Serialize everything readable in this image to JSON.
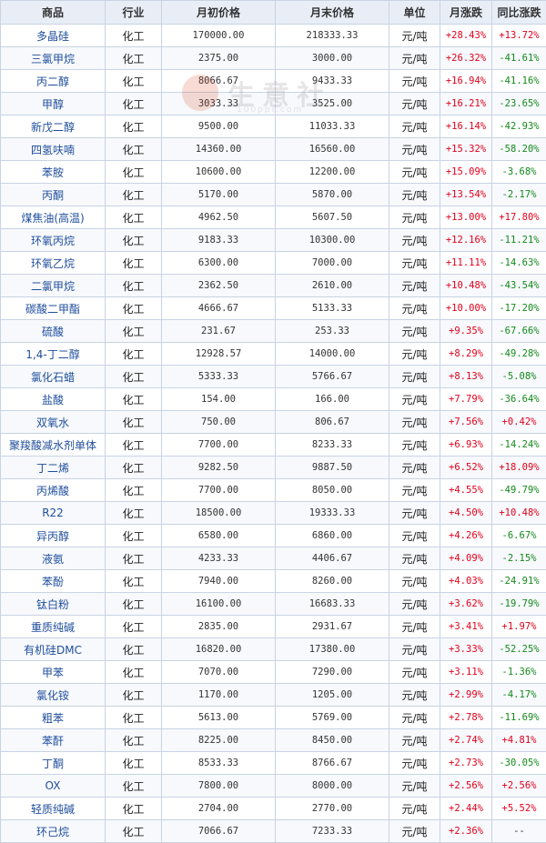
{
  "headers": {
    "product": "商品",
    "industry": "行业",
    "start_price": "月初价格",
    "end_price": "月末价格",
    "unit": "单位",
    "monthly_change": "月涨跌",
    "yoy_change": "同比涨跌"
  },
  "watermark": {
    "text": "生意社",
    "sub": "100ppi.com"
  },
  "colors": {
    "up": "#e0001b",
    "down": "#138a1b",
    "header_bg": "#e9eef6",
    "link": "#1f4e9c"
  },
  "rows": [
    {
      "name": "多晶硅",
      "industry": "化工",
      "start": "170000.00",
      "end": "218333.33",
      "unit": "元/吨",
      "month": "+28.43%",
      "yoy": "+13.72%"
    },
    {
      "name": "三氯甲烷",
      "industry": "化工",
      "start": "2375.00",
      "end": "3000.00",
      "unit": "元/吨",
      "month": "+26.32%",
      "yoy": "-41.61%"
    },
    {
      "name": "丙二醇",
      "industry": "化工",
      "start": "8066.67",
      "end": "9433.33",
      "unit": "元/吨",
      "month": "+16.94%",
      "yoy": "-41.16%"
    },
    {
      "name": "甲醇",
      "industry": "化工",
      "start": "3033.33",
      "end": "3525.00",
      "unit": "元/吨",
      "month": "+16.21%",
      "yoy": "-23.65%"
    },
    {
      "name": "新戊二醇",
      "industry": "化工",
      "start": "9500.00",
      "end": "11033.33",
      "unit": "元/吨",
      "month": "+16.14%",
      "yoy": "-42.93%"
    },
    {
      "name": "四氢呋喃",
      "industry": "化工",
      "start": "14360.00",
      "end": "16560.00",
      "unit": "元/吨",
      "month": "+15.32%",
      "yoy": "-58.20%"
    },
    {
      "name": "苯胺",
      "industry": "化工",
      "start": "10600.00",
      "end": "12200.00",
      "unit": "元/吨",
      "month": "+15.09%",
      "yoy": "-3.68%"
    },
    {
      "name": "丙酮",
      "industry": "化工",
      "start": "5170.00",
      "end": "5870.00",
      "unit": "元/吨",
      "month": "+13.54%",
      "yoy": "-2.17%"
    },
    {
      "name": "煤焦油(高温)",
      "industry": "化工",
      "start": "4962.50",
      "end": "5607.50",
      "unit": "元/吨",
      "month": "+13.00%",
      "yoy": "+17.80%"
    },
    {
      "name": "环氧丙烷",
      "industry": "化工",
      "start": "9183.33",
      "end": "10300.00",
      "unit": "元/吨",
      "month": "+12.16%",
      "yoy": "-11.21%"
    },
    {
      "name": "环氧乙烷",
      "industry": "化工",
      "start": "6300.00",
      "end": "7000.00",
      "unit": "元/吨",
      "month": "+11.11%",
      "yoy": "-14.63%"
    },
    {
      "name": "二氯甲烷",
      "industry": "化工",
      "start": "2362.50",
      "end": "2610.00",
      "unit": "元/吨",
      "month": "+10.48%",
      "yoy": "-43.54%"
    },
    {
      "name": "碳酸二甲酯",
      "industry": "化工",
      "start": "4666.67",
      "end": "5133.33",
      "unit": "元/吨",
      "month": "+10.00%",
      "yoy": "-17.20%"
    },
    {
      "name": "硫酸",
      "industry": "化工",
      "start": "231.67",
      "end": "253.33",
      "unit": "元/吨",
      "month": "+9.35%",
      "yoy": "-67.66%"
    },
    {
      "name": "1,4-丁二醇",
      "industry": "化工",
      "start": "12928.57",
      "end": "14000.00",
      "unit": "元/吨",
      "month": "+8.29%",
      "yoy": "-49.28%"
    },
    {
      "name": "氯化石蜡",
      "industry": "化工",
      "start": "5333.33",
      "end": "5766.67",
      "unit": "元/吨",
      "month": "+8.13%",
      "yoy": "-5.08%"
    },
    {
      "name": "盐酸",
      "industry": "化工",
      "start": "154.00",
      "end": "166.00",
      "unit": "元/吨",
      "month": "+7.79%",
      "yoy": "-36.64%"
    },
    {
      "name": "双氧水",
      "industry": "化工",
      "start": "750.00",
      "end": "806.67",
      "unit": "元/吨",
      "month": "+7.56%",
      "yoy": "+0.42%"
    },
    {
      "name": "聚羧酸减水剂单体",
      "industry": "化工",
      "start": "7700.00",
      "end": "8233.33",
      "unit": "元/吨",
      "month": "+6.93%",
      "yoy": "-14.24%"
    },
    {
      "name": "丁二烯",
      "industry": "化工",
      "start": "9282.50",
      "end": "9887.50",
      "unit": "元/吨",
      "month": "+6.52%",
      "yoy": "+18.09%"
    },
    {
      "name": "丙烯酸",
      "industry": "化工",
      "start": "7700.00",
      "end": "8050.00",
      "unit": "元/吨",
      "month": "+4.55%",
      "yoy": "-49.79%"
    },
    {
      "name": "R22",
      "industry": "化工",
      "start": "18500.00",
      "end": "19333.33",
      "unit": "元/吨",
      "month": "+4.50%",
      "yoy": "+10.48%"
    },
    {
      "name": "异丙醇",
      "industry": "化工",
      "start": "6580.00",
      "end": "6860.00",
      "unit": "元/吨",
      "month": "+4.26%",
      "yoy": "-6.67%"
    },
    {
      "name": "液氨",
      "industry": "化工",
      "start": "4233.33",
      "end": "4406.67",
      "unit": "元/吨",
      "month": "+4.09%",
      "yoy": "-2.15%"
    },
    {
      "name": "苯酚",
      "industry": "化工",
      "start": "7940.00",
      "end": "8260.00",
      "unit": "元/吨",
      "month": "+4.03%",
      "yoy": "-24.91%"
    },
    {
      "name": "钛白粉",
      "industry": "化工",
      "start": "16100.00",
      "end": "16683.33",
      "unit": "元/吨",
      "month": "+3.62%",
      "yoy": "-19.79%"
    },
    {
      "name": "重质纯碱",
      "industry": "化工",
      "start": "2835.00",
      "end": "2931.67",
      "unit": "元/吨",
      "month": "+3.41%",
      "yoy": "+1.97%"
    },
    {
      "name": "有机硅DMC",
      "industry": "化工",
      "start": "16820.00",
      "end": "17380.00",
      "unit": "元/吨",
      "month": "+3.33%",
      "yoy": "-52.25%"
    },
    {
      "name": "甲苯",
      "industry": "化工",
      "start": "7070.00",
      "end": "7290.00",
      "unit": "元/吨",
      "month": "+3.11%",
      "yoy": "-1.36%"
    },
    {
      "name": "氯化铵",
      "industry": "化工",
      "start": "1170.00",
      "end": "1205.00",
      "unit": "元/吨",
      "month": "+2.99%",
      "yoy": "-4.17%"
    },
    {
      "name": "粗苯",
      "industry": "化工",
      "start": "5613.00",
      "end": "5769.00",
      "unit": "元/吨",
      "month": "+2.78%",
      "yoy": "-11.69%"
    },
    {
      "name": "苯酐",
      "industry": "化工",
      "start": "8225.00",
      "end": "8450.00",
      "unit": "元/吨",
      "month": "+2.74%",
      "yoy": "+4.81%"
    },
    {
      "name": "丁酮",
      "industry": "化工",
      "start": "8533.33",
      "end": "8766.67",
      "unit": "元/吨",
      "month": "+2.73%",
      "yoy": "-30.05%"
    },
    {
      "name": "OX",
      "industry": "化工",
      "start": "7800.00",
      "end": "8000.00",
      "unit": "元/吨",
      "month": "+2.56%",
      "yoy": "+2.56%"
    },
    {
      "name": "轻质纯碱",
      "industry": "化工",
      "start": "2704.00",
      "end": "2770.00",
      "unit": "元/吨",
      "month": "+2.44%",
      "yoy": "+5.52%"
    },
    {
      "name": "环己烷",
      "industry": "化工",
      "start": "7066.67",
      "end": "7233.33",
      "unit": "元/吨",
      "month": "+2.36%",
      "yoy": "--"
    }
  ]
}
